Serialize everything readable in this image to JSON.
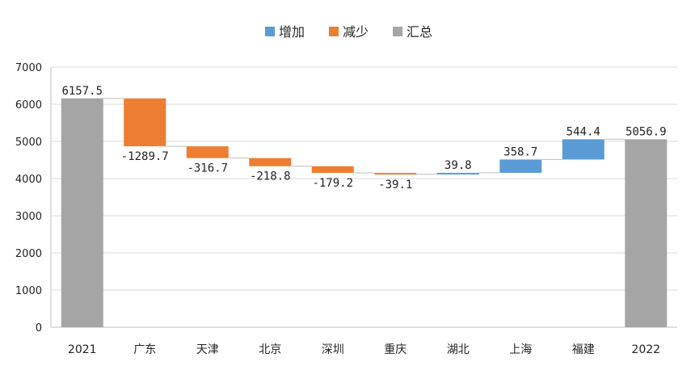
{
  "chart_data": {
    "type": "waterfall",
    "categories": [
      "2021",
      "广东",
      "天津",
      "北京",
      "深圳",
      "重庆",
      "湖北",
      "上海",
      "福建",
      "2022"
    ],
    "values": [
      6157.5,
      -1289.7,
      -316.7,
      -218.8,
      -179.2,
      -39.1,
      39.8,
      358.7,
      544.4,
      5056.9
    ],
    "kinds": [
      "total",
      "decrease",
      "decrease",
      "decrease",
      "decrease",
      "decrease",
      "increase",
      "increase",
      "increase",
      "total"
    ],
    "data_labels": [
      "6157.5",
      "-1289.7",
      "-316.7",
      "-218.8",
      "-179.2",
      "-39.1",
      "39.8",
      "358.7",
      "544.4",
      "5056.9"
    ],
    "legend": [
      {
        "key": "increase",
        "label": "增加",
        "color": "#5B9BD5"
      },
      {
        "key": "decrease",
        "label": "减少",
        "color": "#ED7D31"
      },
      {
        "key": "total",
        "label": "汇总",
        "color": "#A5A5A5"
      }
    ],
    "legend_position": "top",
    "ylim": [
      0,
      7000
    ],
    "yticks": [
      0,
      1000,
      2000,
      3000,
      4000,
      5000,
      6000,
      7000
    ],
    "grid": true,
    "title": "",
    "xlabel": "",
    "ylabel": ""
  }
}
